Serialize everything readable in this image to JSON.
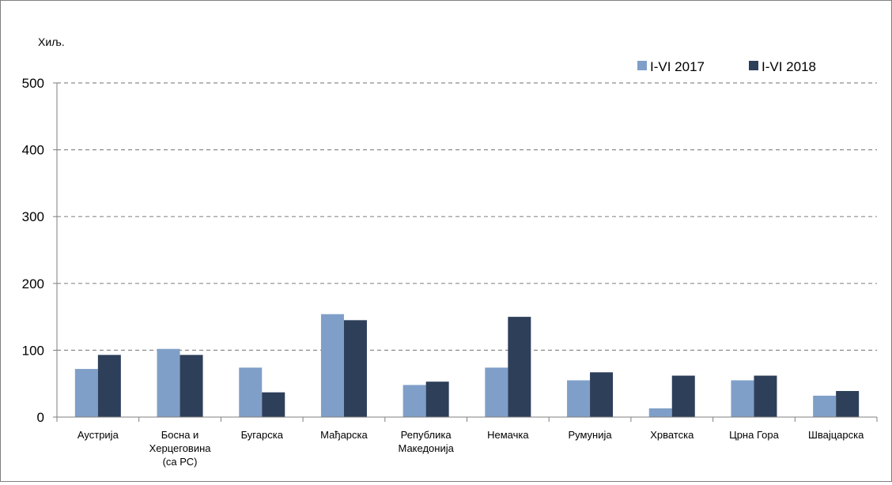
{
  "chart_data": {
    "type": "bar",
    "unit_label": "Хиљ.",
    "categories": [
      [
        "Аустрија"
      ],
      [
        "Босна и",
        "Херцеговина",
        "(са РС)"
      ],
      [
        "Бугарска"
      ],
      [
        "Мађарска"
      ],
      [
        "Република",
        "Македонија"
      ],
      [
        "Немачка"
      ],
      [
        "Румунија"
      ],
      [
        "Хрватска"
      ],
      [
        "Црна Гора"
      ],
      [
        "Швајцарска"
      ]
    ],
    "series": [
      {
        "name": "I-VI 2017",
        "color": "#7f9fc8",
        "values": [
          72,
          102,
          74,
          154,
          48,
          74,
          55,
          13,
          55,
          32
        ]
      },
      {
        "name": "I-VI 2018",
        "color": "#2e3f5a",
        "values": [
          93,
          93,
          37,
          145,
          53,
          150,
          67,
          62,
          62,
          39
        ]
      }
    ],
    "ylim": [
      0,
      500
    ],
    "yticks": [
      0,
      100,
      200,
      300,
      400,
      500
    ],
    "grid": true,
    "legend_position": "top-right"
  }
}
